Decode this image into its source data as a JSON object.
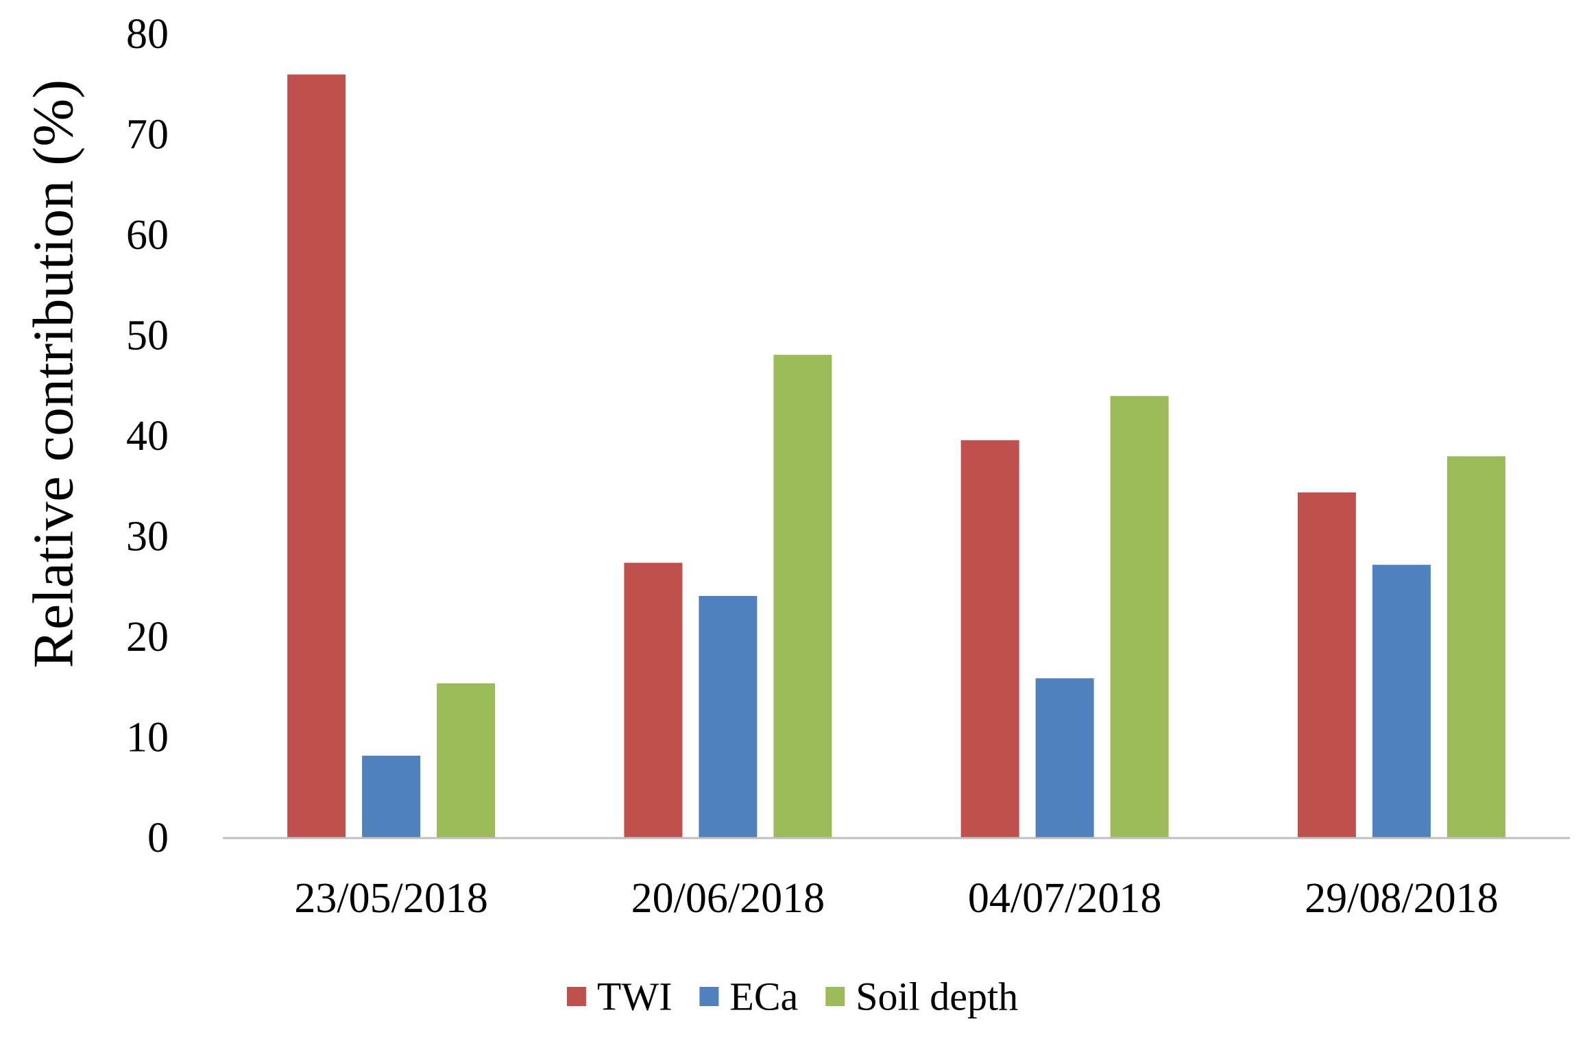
{
  "chart_data": {
    "type": "bar",
    "title": "",
    "xlabel": "",
    "ylabel": "Relative contribution (%)",
    "ylim": [
      0,
      80
    ],
    "yticks": [
      "0",
      "10",
      "20",
      "30",
      "40",
      "50",
      "60",
      "70",
      "80"
    ],
    "grid": false,
    "legend_position": "bottom",
    "categories": [
      "23/05/2018",
      "20/06/2018",
      "04/07/2018",
      "29/08/2018"
    ],
    "series": [
      {
        "name": "TWI",
        "color": "#C0504D",
        "values": [
          76.0,
          27.4,
          39.6,
          34.4
        ]
      },
      {
        "name": "ECa",
        "color": "#4F81BD",
        "values": [
          8.2,
          24.1,
          15.9,
          27.2
        ]
      },
      {
        "name": "Soil depth",
        "color": "#9BBB59",
        "values": [
          15.4,
          48.1,
          44.0,
          38.0
        ]
      }
    ],
    "axis_color": "#BFBFBF"
  }
}
